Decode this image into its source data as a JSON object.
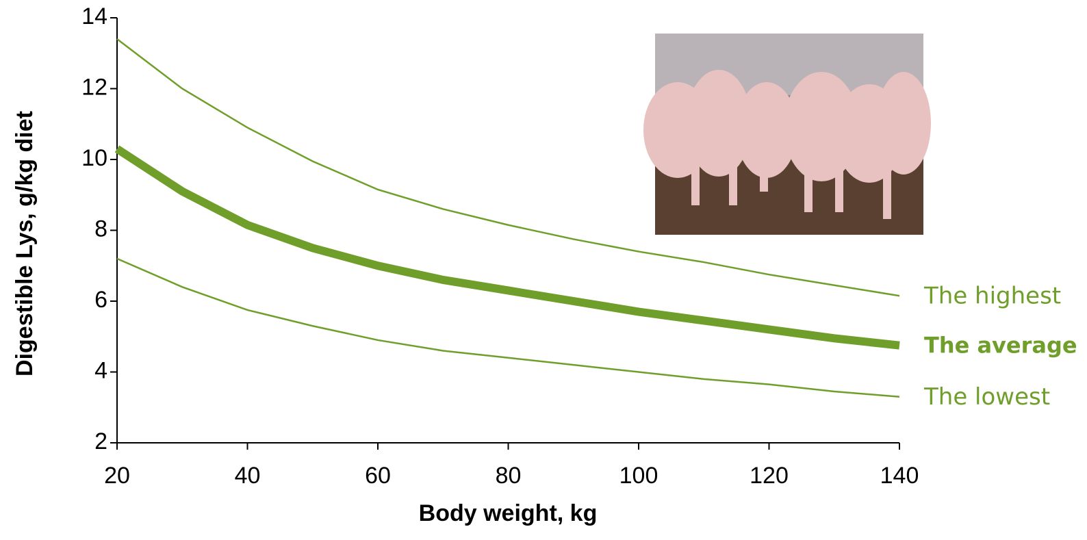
{
  "chart_data": {
    "type": "line",
    "x_label": "Body weight, kg",
    "y_label": "Digestible Lys, g/kg diet",
    "x": [
      20,
      30,
      40,
      50,
      60,
      70,
      80,
      90,
      100,
      110,
      120,
      130,
      140
    ],
    "series": [
      {
        "name": "The highest",
        "color": "#6f9f2a",
        "values": [
          13.4,
          12.0,
          10.9,
          9.95,
          9.15,
          8.6,
          8.15,
          7.75,
          7.4,
          7.1,
          6.75,
          6.45,
          6.15
        ]
      },
      {
        "name": "The average",
        "color": "#6f9f2a",
        "values": [
          10.3,
          9.1,
          8.15,
          7.5,
          7.0,
          6.6,
          6.3,
          6.0,
          5.7,
          5.45,
          5.2,
          4.95,
          4.75
        ]
      },
      {
        "name": "The lowest",
        "color": "#6f9f2a",
        "values": [
          7.2,
          6.4,
          5.75,
          5.3,
          4.9,
          4.6,
          4.4,
          4.2,
          4.0,
          3.8,
          3.65,
          3.45,
          3.3
        ]
      }
    ],
    "xlim": [
      20,
      140
    ],
    "xticks": [
      20,
      40,
      60,
      80,
      100,
      120,
      140
    ],
    "ylim": [
      2,
      14
    ],
    "yticks": [
      2,
      4,
      6,
      8,
      10,
      12,
      14
    ],
    "grid": false
  }
}
